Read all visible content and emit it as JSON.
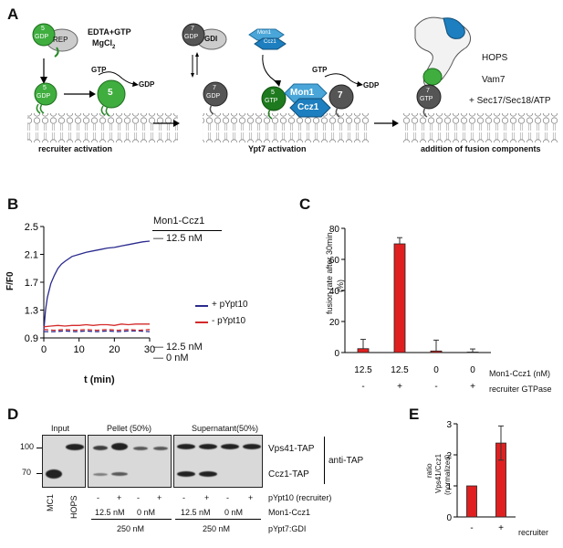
{
  "panels": {
    "A": "A",
    "B": "B",
    "C": "C",
    "D": "D",
    "E": "E"
  },
  "panelA": {
    "reagent_line1": "EDTA+GTP",
    "reagent_line2": "MgCl",
    "reagent_sub": "2",
    "rep": "REP",
    "gdi": "GDI",
    "gtp": "GTP",
    "gdp": "GDP",
    "num5": "5",
    "num7": "7",
    "mon1": "Mon1",
    "ccz1": "Ccz1",
    "hops": "HOPS",
    "vam7": "Vam7",
    "sec": "+ Sec17/Sec18/ATP",
    "label1": "recruiter activation",
    "label2": "Ypt7 activation",
    "label3": "addition of fusion components",
    "equil": "⇌"
  },
  "panelB": {
    "ylabel": "F/F0",
    "xlabel": "t (min)",
    "header": "Mon1-Ccz1",
    "conc_top": "— 12.5 nM",
    "conc_mid": "— 12.5 nM",
    "conc_bot": "— 0 nM",
    "legend_plus": "+ pYpt10",
    "legend_minus": "- pYpt10",
    "color_plus": "#2b2b8f",
    "color_minus": "#d42a2a"
  },
  "panelC": {
    "ylabel_line1": "fusion rate after 30min",
    "ylabel_line2": "(%)",
    "row1_label": "Mon1-Ccz1 (nM)",
    "row2_label": "recruiter GTPase",
    "row1": [
      "12.5",
      "12.5",
      "0",
      "0"
    ],
    "row2": [
      "-",
      "+",
      "-",
      "+"
    ]
  },
  "panelD": {
    "input": "Input",
    "pellet": "Pellet (50%)",
    "supernatant": "Supernatant(50%)",
    "mw_100": "100",
    "mw_70": "70",
    "vps41": "Vps41-TAP",
    "ccz1": "Ccz1-TAP",
    "antitap": "anti-TAP",
    "mc1": "MC1",
    "hops": "HOPS",
    "pm": [
      "-",
      "+",
      "-",
      "+",
      "-",
      "+",
      "-",
      "+"
    ],
    "pypt10": "pYpt10 (recruiter)",
    "conc": [
      "12.5 nM",
      "0 nM",
      "12.5 nM",
      "0 nM"
    ],
    "mon1ccz1": "Mon1-Ccz1",
    "gdi_conc": [
      "250 nM",
      "250 nM"
    ],
    "pypt7": "pYpt7:GDI"
  },
  "panelE": {
    "ylabel_line1": "ratio",
    "ylabel_line2": "Vps41/Ccz1",
    "ylabel_line3": "(normalized)",
    "xlabels": [
      "-",
      "+"
    ],
    "recruiter": "recruiter"
  },
  "chart_data": [
    {
      "type": "line",
      "panel": "B",
      "xlabel": "t (min)",
      "ylabel": "F/F0",
      "xlim": [
        0,
        30
      ],
      "ylim": [
        0.9,
        2.5
      ],
      "xticks": [
        0,
        10,
        20,
        30
      ],
      "yticks": [
        0.9,
        1.3,
        1.7,
        2.1,
        2.5
      ],
      "series": [
        {
          "name": "+ pYpt10",
          "color": "#2b2b8f",
          "x": [
            0,
            0.5,
            1,
            2,
            3,
            4,
            5,
            6,
            8,
            10,
            12,
            14,
            16,
            18,
            20,
            22,
            24,
            26,
            28,
            30
          ],
          "y": [
            1.0,
            1.3,
            1.48,
            1.68,
            1.8,
            1.9,
            1.96,
            2.0,
            2.07,
            2.1,
            2.13,
            2.15,
            2.17,
            2.19,
            2.2,
            2.22,
            2.24,
            2.26,
            2.28,
            2.29
          ]
        },
        {
          "name": "- pYpt10",
          "color": "#d42a2a",
          "x": [
            0,
            2,
            4,
            6,
            8,
            10,
            12,
            14,
            16,
            18,
            20,
            22,
            24,
            26,
            28,
            30
          ],
          "y": [
            1.06,
            1.07,
            1.08,
            1.07,
            1.08,
            1.08,
            1.09,
            1.08,
            1.09,
            1.09,
            1.08,
            1.1,
            1.09,
            1.1,
            1.1,
            1.1
          ]
        },
        {
          "color": "#2b2b8f",
          "dash": true,
          "x": [
            0,
            3,
            6,
            9,
            12,
            15,
            18,
            21,
            24,
            27,
            30
          ],
          "y": [
            0.99,
            0.99,
            1.0,
            0.99,
            1.0,
            0.99,
            1.0,
            0.99,
            1.0,
            1.0,
            0.99
          ]
        },
        {
          "color": "#d42a2a",
          "dash": true,
          "x": [
            0,
            3,
            6,
            9,
            12,
            15,
            18,
            21,
            24,
            27,
            30
          ],
          "y": [
            1.02,
            1.01,
            1.02,
            1.01,
            1.02,
            1.01,
            1.02,
            1.01,
            1.02,
            1.01,
            1.02
          ]
        }
      ]
    },
    {
      "type": "bar",
      "panel": "C",
      "ylabel": "fusion rate after 30min (%)",
      "ylim": [
        0,
        80
      ],
      "yticks": [
        0,
        20,
        40,
        60,
        80
      ],
      "categories": [
        "12.5 / -",
        "12.5 / +",
        "0 / -",
        "0 / +"
      ],
      "values": [
        2.5,
        70,
        1.0,
        0.3
      ],
      "errors": [
        6,
        4,
        7,
        2
      ],
      "color": "#e02020"
    },
    {
      "type": "bar",
      "panel": "E",
      "ylabel": "ratio Vps41/Ccz1 (normalized)",
      "ylim": [
        0,
        3
      ],
      "yticks": [
        0,
        1,
        2,
        3
      ],
      "categories": [
        "-",
        "+"
      ],
      "values": [
        1.0,
        2.38
      ],
      "errors": [
        0,
        0.55
      ],
      "color": "#e02020"
    }
  ]
}
